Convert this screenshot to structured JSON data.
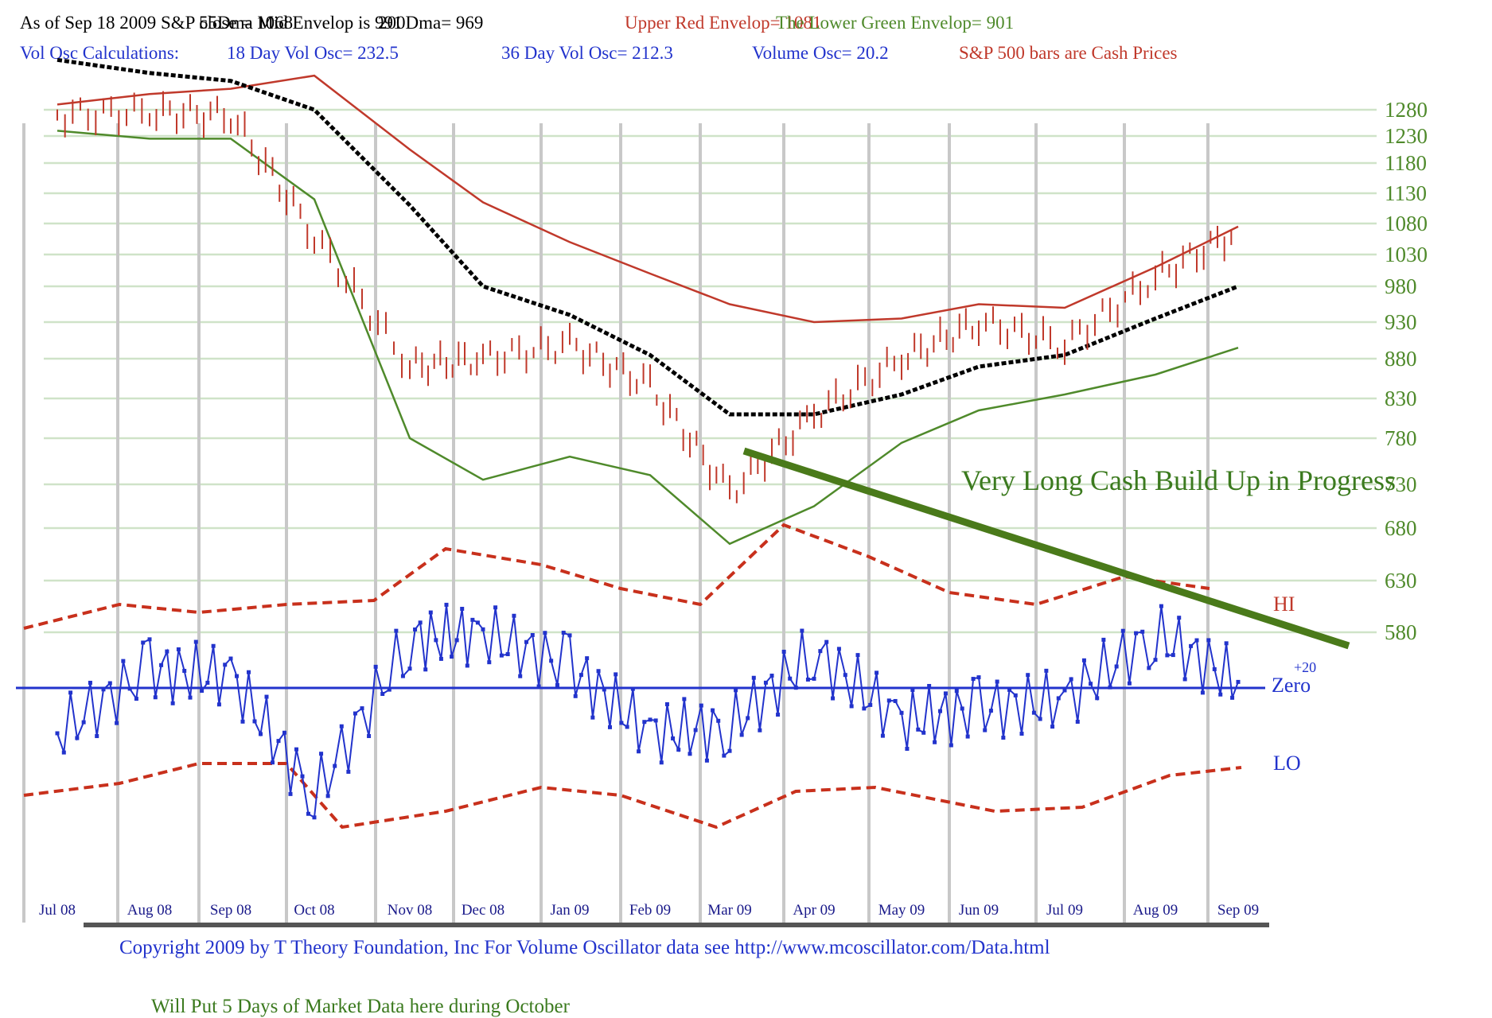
{
  "header": {
    "line1": [
      {
        "text": "As of Sep 18  2009  S&P close = 1068",
        "color": "#000000"
      },
      {
        "text": "55Dma Mid Envelop is  991",
        "color": "#000000"
      },
      {
        "text": "200Dma=  969",
        "color": "#000000"
      },
      {
        "text": "Upper Red Envelop= 1081",
        "color": "#c0392b"
      },
      {
        "text": "The Lower Green Envelop=  901",
        "color": "#4f8a2b"
      }
    ],
    "line2": [
      {
        "text": "Vol Osc Calculations:",
        "color": "#2233cc"
      },
      {
        "text": "18 Day Vol Osc=  232.5",
        "color": "#2233cc"
      },
      {
        "text": "36 Day Vol Osc=  212.3",
        "color": "#2233cc"
      },
      {
        "text": "Volume Osc=  20.2",
        "color": "#2233cc"
      },
      {
        "text": "S&P 500 bars are Cash Prices",
        "color": "#c0392b"
      }
    ]
  },
  "annotations": {
    "trend_text": "Very Long Cash Build Up in Progress",
    "hi_label": "HI",
    "lo_label": "LO",
    "zero_label": "Zero",
    "zero_value": "+20"
  },
  "footer": {
    "copyright": "Copyright 2009 by T Theory Foundation, Inc  For Volume Oscillator data see http://www.mcoscillator.com/Data.html",
    "note": "Will Put 5 Days of Market Data here during October"
  },
  "colors": {
    "price_bars": "#c0392b",
    "upper_envelope": "#c0392b",
    "lower_envelope": "#4f8a2b",
    "ma200": "#000000",
    "oscillator": "#2233cc",
    "osc_bands": "#c8301c",
    "trendline": "#4a7a1a",
    "axis_labels": "#4f8a2b",
    "gridlines": "#cfe3c8",
    "month_lines": "#c8c8c8"
  },
  "chart_data": {
    "type": "line",
    "title": "",
    "y_axis": {
      "ticks": [
        1280,
        1230,
        1180,
        1130,
        1080,
        1030,
        980,
        930,
        880,
        830,
        780,
        730,
        680,
        630,
        580
      ]
    },
    "x_axis": {
      "ticks": [
        "Jul 08",
        "Aug 08",
        "Sep 08",
        "Oct 08",
        "Nov 08",
        "Dec 08",
        "Jan 09",
        "Feb 09",
        "Mar 09",
        "Apr 09",
        "May 09",
        "Jun 09",
        "Jul 09",
        "Aug 09",
        "Sep 09"
      ]
    },
    "series": [
      {
        "key": "upper_envelope",
        "points": [
          [
            "Jul 08",
            1290
          ],
          [
            "Aug 08",
            1310
          ],
          [
            "Sep 08",
            1320
          ],
          [
            "Oct 08",
            1345
          ],
          [
            "Nov 08",
            1205
          ],
          [
            "Dec 08",
            1115
          ],
          [
            "Jan 09",
            1050
          ],
          [
            "Feb 09",
            1000
          ],
          [
            "Mar 09",
            955
          ],
          [
            "Apr 09",
            930
          ],
          [
            "May 09",
            935
          ],
          [
            "Jun 09",
            955
          ],
          [
            "Jul 09",
            950
          ],
          [
            "Aug 09",
            1010
          ],
          [
            "Sep 09",
            1075
          ]
        ]
      },
      {
        "key": "lower_envelope",
        "points": [
          [
            "Jul 08",
            1240
          ],
          [
            "Aug 08",
            1225
          ],
          [
            "Sep 08",
            1225
          ],
          [
            "Oct 08",
            1120
          ],
          [
            "Nov 08",
            780
          ],
          [
            "Dec 08",
            735
          ],
          [
            "Jan 09",
            760
          ],
          [
            "Feb 09",
            740
          ],
          [
            "Mar 09",
            665
          ],
          [
            "Apr 09",
            705
          ],
          [
            "May 09",
            775
          ],
          [
            "Jun 09",
            815
          ],
          [
            "Jul 09",
            835
          ],
          [
            "Aug 09",
            860
          ],
          [
            "Sep 09",
            895
          ]
        ]
      },
      {
        "key": "ma200",
        "points": [
          [
            "Jul 08",
            1375
          ],
          [
            "Aug 08",
            1350
          ],
          [
            "Sep 08",
            1335
          ],
          [
            "Oct 08",
            1280
          ],
          [
            "Nov 08",
            1110
          ],
          [
            "Dec 08",
            980
          ],
          [
            "Jan 09",
            940
          ],
          [
            "Feb 09",
            885
          ],
          [
            "Mar 09",
            810
          ],
          [
            "Apr 09",
            810
          ],
          [
            "May 09",
            835
          ],
          [
            "Jun 09",
            870
          ],
          [
            "Jul 09",
            885
          ],
          [
            "Aug 09",
            935
          ],
          [
            "Sep 09",
            980
          ]
        ]
      },
      {
        "key": "sp500_cash",
        "points": [
          [
            "Jul 08",
            1270
          ],
          [
            "Aug 08",
            1275
          ],
          [
            "Sep 08",
            1270
          ],
          [
            "Oct 08",
            1060
          ],
          [
            "Nov 08",
            870
          ],
          [
            "Dec 08",
            880
          ],
          [
            "Jan 09",
            900
          ],
          [
            "Feb 09",
            845
          ],
          [
            "Mar 09",
            720
          ],
          [
            "Apr 09",
            810
          ],
          [
            "May 09",
            880
          ],
          [
            "Jun 09",
            930
          ],
          [
            "Jul 09",
            900
          ],
          [
            "Aug 09",
            995
          ],
          [
            "Sep 09",
            1068
          ]
        ]
      },
      {
        "key": "volume_oscillator",
        "points": [
          [
            "Jul 08",
            -150
          ],
          [
            "Aug 08",
            60
          ],
          [
            "Sep 08",
            40
          ],
          [
            "Oct 08",
            -360
          ],
          [
            "Nov 08",
            160
          ],
          [
            "Dec 08",
            180
          ],
          [
            "Jan 09",
            70
          ],
          [
            "Feb 09",
            -150
          ],
          [
            "Mar 09",
            -130
          ],
          [
            "Apr 09",
            120
          ],
          [
            "May 09",
            -110
          ],
          [
            "Jun 09",
            -70
          ],
          [
            "Jul 09",
            -40
          ],
          [
            "Aug 09",
            180
          ],
          [
            "Sep 09",
            20
          ]
        ]
      }
    ]
  }
}
